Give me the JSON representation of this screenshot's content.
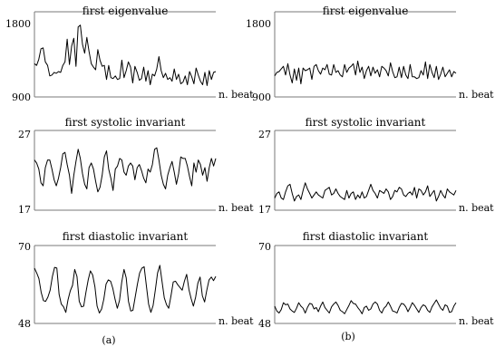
{
  "chart_data": [
    {
      "type": "line",
      "title": "first eigenvalue",
      "xlabel": "n. beat",
      "ylim": [
        900,
        1800
      ],
      "ytick_labels": [
        "1800",
        "900"
      ],
      "grid": false,
      "series": [
        {
          "values": [
            1280,
            1260,
            1330,
            1450,
            1460,
            1300,
            1260,
            1140,
            1150,
            1180,
            1170,
            1190,
            1180,
            1260,
            1300,
            1560,
            1270,
            1480,
            1570,
            1250,
            1700,
            1720,
            1500,
            1400,
            1580,
            1420,
            1280,
            1240,
            1210,
            1440,
            1320,
            1250,
            1260,
            1100,
            1260,
            1120,
            1110,
            1140,
            1100,
            1110,
            1320,
            1120,
            1200,
            1300,
            1240,
            1060,
            1250,
            1180,
            1090,
            1110,
            1240,
            1080,
            1200,
            1040,
            1160,
            1140,
            1220,
            1360,
            1200,
            1120,
            1170,
            1100,
            1120,
            1080,
            1220,
            1100,
            1160,
            1050,
            1070,
            1140,
            1040,
            1190,
            1130,
            1050,
            1230,
            1150,
            1080,
            1040,
            1180,
            1030,
            1200,
            1100,
            1180,
            1190
          ]
        }
      ]
    },
    {
      "type": "line",
      "title": "first eigenvalue",
      "xlabel": "n. beat",
      "ylim": [
        900,
        1800
      ],
      "ytick_labels": [
        "1800",
        "900"
      ],
      "grid": false,
      "series": [
        {
          "values": [
            1140,
            1180,
            1190,
            1220,
            1250,
            1150,
            1280,
            1150,
            1060,
            1220,
            1090,
            1230,
            1050,
            1230,
            1200,
            1210,
            1230,
            1100,
            1250,
            1270,
            1200,
            1160,
            1230,
            1210,
            1270,
            1160,
            1150,
            1270,
            1180,
            1200,
            1150,
            1130,
            1270,
            1180,
            1230,
            1250,
            1280,
            1150,
            1310,
            1180,
            1240,
            1110,
            1200,
            1250,
            1140,
            1240,
            1170,
            1210,
            1130,
            1250,
            1230,
            1200,
            1140,
            1290,
            1190,
            1120,
            1130,
            1240,
            1120,
            1250,
            1150,
            1110,
            1270,
            1130,
            1130,
            1110,
            1120,
            1200,
            1150,
            1300,
            1110,
            1270,
            1180,
            1120,
            1250,
            1100,
            1160,
            1240,
            1130,
            1170,
            1210,
            1130,
            1190,
            1170
          ]
        }
      ]
    },
    {
      "type": "line",
      "title": "first systolic invariant",
      "xlabel": "n. beat",
      "ylim": [
        17,
        27
      ],
      "ytick_labels": [
        "27",
        "17"
      ],
      "grid": false,
      "series": [
        {
          "values": [
            23.6,
            23.2,
            22.4,
            20.6,
            20.2,
            22.6,
            23.6,
            23.6,
            22.4,
            21.0,
            20.2,
            21.2,
            22.6,
            24.4,
            24.6,
            23.0,
            21.6,
            19.2,
            21.6,
            23.4,
            25.0,
            23.8,
            21.8,
            20.4,
            19.8,
            22.6,
            23.2,
            22.4,
            20.8,
            19.4,
            20.0,
            21.6,
            24.0,
            24.8,
            22.4,
            21.2,
            19.6,
            22.4,
            22.8,
            23.8,
            23.6,
            22.0,
            21.6,
            22.8,
            23.2,
            22.8,
            21.0,
            22.6,
            23.0,
            22.2,
            21.2,
            20.6,
            22.4,
            22.0,
            23.0,
            25.0,
            25.2,
            23.6,
            21.6,
            20.4,
            19.8,
            21.6,
            22.6,
            23.4,
            22.0,
            20.4,
            21.8,
            24.0,
            23.8,
            23.8,
            22.8,
            21.4,
            20.2,
            23.2,
            22.0,
            23.6,
            23.0,
            21.6,
            22.6,
            20.8,
            22.6,
            23.8,
            22.8,
            23.8
          ]
        }
      ]
    },
    {
      "type": "line",
      "title": "first systolic invariant",
      "xlabel": "n. beat",
      "ylim": [
        17,
        27
      ],
      "ytick_labels": [
        "27",
        "17"
      ],
      "grid": false,
      "series": [
        {
          "values": [
            18.6,
            19.2,
            19.4,
            18.6,
            18.4,
            19.4,
            20.2,
            20.4,
            19.2,
            18.2,
            18.8,
            19.0,
            18.4,
            19.6,
            20.6,
            19.8,
            19.2,
            18.6,
            19.0,
            19.4,
            19.0,
            18.8,
            18.6,
            19.6,
            19.8,
            20.0,
            19.0,
            19.2,
            19.8,
            19.2,
            18.8,
            18.6,
            18.4,
            19.6,
            18.6,
            19.2,
            19.4,
            18.4,
            19.0,
            18.6,
            19.4,
            18.6,
            18.8,
            19.6,
            20.4,
            19.6,
            19.2,
            18.6,
            19.6,
            19.4,
            19.2,
            19.8,
            19.4,
            18.4,
            18.8,
            19.6,
            19.4,
            20.0,
            19.8,
            19.0,
            18.8,
            19.2,
            19.4,
            19.0,
            20.0,
            18.6,
            19.8,
            19.6,
            19.0,
            19.4,
            20.2,
            18.8,
            19.2,
            19.6,
            18.2,
            18.8,
            19.6,
            19.0,
            18.6,
            19.8,
            19.4,
            19.2,
            19.0,
            19.6
          ]
        }
      ]
    },
    {
      "type": "line",
      "title": "first diastolic invariant",
      "xlabel": "n. beat",
      "ylim": [
        48,
        70
      ],
      "ytick_labels": [
        "70",
        "48"
      ],
      "grid": false,
      "series": [
        {
          "values": [
            64.0,
            62.6,
            61.0,
            57.0,
            54.6,
            54.4,
            55.6,
            57.6,
            61.6,
            64.2,
            64.0,
            56.4,
            53.6,
            52.8,
            51.2,
            54.8,
            57.4,
            59.0,
            63.6,
            61.6,
            54.4,
            52.8,
            53.0,
            57.0,
            60.6,
            63.2,
            62.0,
            58.6,
            53.0,
            51.0,
            52.2,
            55.0,
            59.4,
            60.6,
            60.2,
            58.2,
            55.0,
            52.4,
            54.6,
            60.0,
            63.6,
            61.2,
            54.4,
            51.6,
            51.8,
            55.6,
            59.4,
            62.6,
            64.0,
            64.4,
            58.8,
            53.6,
            51.2,
            53.2,
            57.6,
            62.6,
            64.8,
            60.2,
            55.4,
            53.4,
            52.4,
            56.0,
            60.0,
            60.2,
            59.2,
            58.4,
            57.6,
            60.2,
            62.2,
            57.8,
            55.2,
            53.0,
            55.6,
            59.6,
            61.4,
            56.0,
            54.2,
            57.6,
            60.6,
            61.4,
            60.4,
            61.6
          ]
        }
      ]
    },
    {
      "type": "line",
      "title": "first diastolic invariant",
      "xlabel": "n. beat",
      "ylim": [
        48,
        70
      ],
      "ytick_labels": [
        "70",
        "48"
      ],
      "grid": false,
      "series": [
        {
          "values": [
            53.0,
            51.6,
            51.0,
            52.0,
            54.0,
            53.4,
            53.6,
            52.2,
            51.6,
            51.2,
            52.4,
            54.0,
            53.0,
            52.4,
            51.0,
            52.6,
            53.8,
            53.6,
            52.2,
            52.6,
            51.4,
            53.0,
            54.2,
            52.6,
            51.8,
            51.0,
            52.8,
            53.6,
            54.2,
            53.2,
            51.8,
            51.4,
            50.8,
            52.0,
            53.2,
            54.6,
            53.8,
            53.6,
            52.6,
            51.8,
            50.8,
            52.6,
            53.0,
            51.8,
            52.2,
            53.6,
            54.2,
            53.6,
            51.8,
            51.0,
            52.4,
            53.0,
            54.2,
            53.0,
            51.6,
            51.4,
            51.0,
            52.6,
            53.8,
            53.6,
            52.8,
            51.4,
            52.6,
            54.0,
            53.2,
            52.2,
            51.2,
            52.6,
            53.4,
            53.0,
            51.8,
            51.2,
            52.8,
            53.8,
            54.8,
            53.6,
            52.4,
            51.8,
            53.4,
            53.0,
            51.2,
            51.4,
            53.0,
            54.0
          ]
        }
      ]
    }
  ],
  "captions": [
    "(a)",
    "(b)"
  ]
}
